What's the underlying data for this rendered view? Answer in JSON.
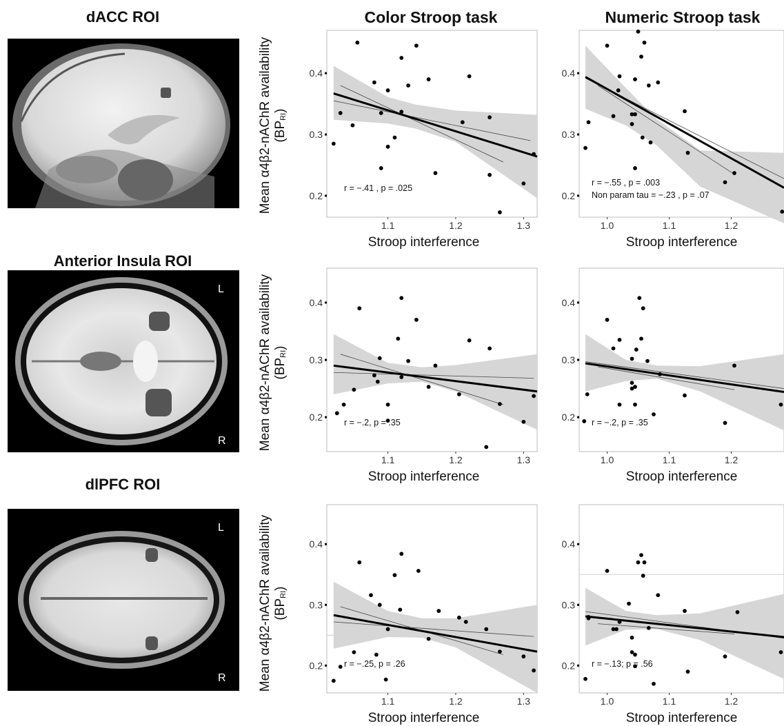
{
  "roi_titles": {
    "dacc": "dACC ROI",
    "insula": "Anterior Insula ROI",
    "dlpfc": "dlPFC ROI"
  },
  "column_titles": {
    "color": "Color Stroop task",
    "numeric": "Numeric Stroop task"
  },
  "brain_labels": {
    "left": "L",
    "right": "R"
  },
  "ylabel": {
    "main": "Mean α4β2-nAChR availability",
    "sub_prefix": "(BP",
    "sub_subscript": "RI",
    "sub_suffix": ")"
  },
  "colors": {
    "ci_band": "#d6d6d6",
    "fit_line": "#000000",
    "roi_blob": "#555555"
  },
  "chart_data": [
    {
      "type": "scatter",
      "panel": "dACC - Color Stroop",
      "xlabel": "Stroop interference",
      "xlim": [
        1.01,
        1.32
      ],
      "ylim": [
        0.165,
        0.47
      ],
      "xticks": [
        "1.1",
        "1.2",
        "1.3"
      ],
      "yticks": [
        "0.2",
        "0.3",
        "0.4"
      ],
      "annotation": [
        "r = −.41 , p = .025"
      ],
      "fit": {
        "y_start": 0.367,
        "y_end": 0.264
      },
      "band": [
        [
          1.02,
          0.412,
          0.324
        ],
        [
          1.1,
          0.361,
          0.318
        ],
        [
          1.14,
          0.349,
          0.31
        ],
        [
          1.2,
          0.339,
          0.288
        ],
        [
          1.32,
          0.332,
          0.196
        ]
      ],
      "extra_lines": [
        {
          "x": [
            1.02,
            1.31
          ],
          "y": [
            0.355,
            0.29
          ]
        },
        {
          "x": [
            1.03,
            1.27
          ],
          "y": [
            0.38,
            0.255
          ]
        }
      ],
      "points": [
        [
          1.02,
          0.285
        ],
        [
          1.03,
          0.335
        ],
        [
          1.048,
          0.315
        ],
        [
          1.055,
          0.45
        ],
        [
          1.08,
          0.385
        ],
        [
          1.09,
          0.245
        ],
        [
          1.09,
          0.335
        ],
        [
          1.1,
          0.28
        ],
        [
          1.1,
          0.372
        ],
        [
          1.11,
          0.295
        ],
        [
          1.12,
          0.337
        ],
        [
          1.12,
          0.425
        ],
        [
          1.13,
          0.38
        ],
        [
          1.142,
          0.445
        ],
        [
          1.16,
          0.39
        ],
        [
          1.17,
          0.237
        ],
        [
          1.21,
          0.32
        ],
        [
          1.22,
          0.395
        ],
        [
          1.25,
          0.328
        ],
        [
          1.25,
          0.234
        ],
        [
          1.265,
          0.173
        ],
        [
          1.3,
          0.22
        ],
        [
          1.315,
          0.268
        ]
      ]
    },
    {
      "type": "scatter",
      "panel": "dACC - Numeric Stroop",
      "xlabel": "Stroop interference",
      "xlim": [
        0.955,
        1.285
      ],
      "ylim": [
        0.165,
        0.47
      ],
      "xticks": [
        "1.0",
        "1.1",
        "1.2"
      ],
      "yticks": [
        "0.2",
        "0.3",
        "0.4"
      ],
      "annotation": [
        "r = −.55 , p = .003",
        "Non param tau = −.23 , p = .07"
      ],
      "fit": {
        "y_start": 0.394,
        "y_end": 0.213
      },
      "band": [
        [
          0.965,
          0.445,
          0.342
        ],
        [
          1.03,
          0.376,
          0.315
        ],
        [
          1.08,
          0.325,
          0.282
        ],
        [
          1.15,
          0.274,
          0.215
        ],
        [
          1.285,
          0.27,
          0.155
        ]
      ],
      "extra_lines": [
        {
          "x": [
            0.965,
            1.285
          ],
          "y": [
            0.392,
            0.228
          ]
        },
        {
          "x": [
            0.985,
            1.205
          ],
          "y": [
            0.38,
            0.235
          ]
        }
      ],
      "points": [
        [
          0.965,
          0.278
        ],
        [
          0.97,
          0.32
        ],
        [
          1.0,
          0.445
        ],
        [
          1.01,
          0.33
        ],
        [
          1.018,
          0.372
        ],
        [
          1.02,
          0.395
        ],
        [
          1.04,
          0.333
        ],
        [
          1.04,
          0.317
        ],
        [
          1.045,
          0.333
        ],
        [
          1.045,
          0.245
        ],
        [
          1.045,
          0.39
        ],
        [
          1.05,
          0.468
        ],
        [
          1.055,
          0.427
        ],
        [
          1.057,
          0.295
        ],
        [
          1.06,
          0.45
        ],
        [
          1.067,
          0.38
        ],
        [
          1.07,
          0.287
        ],
        [
          1.082,
          0.385
        ],
        [
          1.125,
          0.338
        ],
        [
          1.13,
          0.27
        ],
        [
          1.19,
          0.222
        ],
        [
          1.205,
          0.237
        ],
        [
          1.282,
          0.174
        ]
      ]
    },
    {
      "type": "scatter",
      "panel": "Anterior Insula - Color Stroop",
      "xlabel": "Stroop interference",
      "xlim": [
        1.01,
        1.32
      ],
      "ylim": [
        0.14,
        0.46
      ],
      "xticks": [
        "1.1",
        "1.2",
        "1.3"
      ],
      "yticks": [
        "0.2",
        "0.3",
        "0.4"
      ],
      "annotation": [
        "r = −.2, p = .35"
      ],
      "fit": {
        "y_start": 0.29,
        "y_end": 0.245
      },
      "band": [
        [
          1.02,
          0.345,
          0.24
        ],
        [
          1.1,
          0.295,
          0.259
        ],
        [
          1.15,
          0.287,
          0.262
        ],
        [
          1.2,
          0.291,
          0.245
        ],
        [
          1.32,
          0.31,
          0.178
        ]
      ],
      "extra_lines": [
        {
          "x": [
            1.02,
            1.315
          ],
          "y": [
            0.278,
            0.268
          ]
        },
        {
          "x": [
            1.03,
            1.27
          ],
          "y": [
            0.31,
            0.222
          ]
        }
      ],
      "points": [
        [
          1.025,
          0.207
        ],
        [
          1.035,
          0.222
        ],
        [
          1.05,
          0.248
        ],
        [
          1.058,
          0.39
        ],
        [
          1.08,
          0.273
        ],
        [
          1.085,
          0.262
        ],
        [
          1.088,
          0.303
        ],
        [
          1.1,
          0.194
        ],
        [
          1.1,
          0.222
        ],
        [
          1.115,
          0.337
        ],
        [
          1.12,
          0.27
        ],
        [
          1.12,
          0.408
        ],
        [
          1.13,
          0.298
        ],
        [
          1.142,
          0.37
        ],
        [
          1.16,
          0.253
        ],
        [
          1.17,
          0.29
        ],
        [
          1.205,
          0.24
        ],
        [
          1.22,
          0.334
        ],
        [
          1.245,
          0.148
        ],
        [
          1.25,
          0.32
        ],
        [
          1.265,
          0.223
        ],
        [
          1.3,
          0.192
        ],
        [
          1.315,
          0.237
        ]
      ]
    },
    {
      "type": "scatter",
      "panel": "Anterior Insula - Numeric Stroop",
      "xlabel": "Stroop interference",
      "xlim": [
        0.955,
        1.285
      ],
      "ylim": [
        0.14,
        0.46
      ],
      "xticks": [
        "1.0",
        "1.1",
        "1.2"
      ],
      "yticks": [
        "0.2",
        "0.3",
        "0.4"
      ],
      "annotation": [
        "r = −.2, p = .35"
      ],
      "fit": {
        "y_start": 0.294,
        "y_end": 0.244
      },
      "band": [
        [
          0.965,
          0.345,
          0.245
        ],
        [
          1.03,
          0.3,
          0.263
        ],
        [
          1.08,
          0.29,
          0.267
        ],
        [
          1.15,
          0.289,
          0.245
        ],
        [
          1.285,
          0.31,
          0.177
        ]
      ],
      "extra_lines": [
        {
          "x": [
            0.965,
            1.285
          ],
          "y": [
            0.297,
            0.25
          ]
        },
        {
          "x": [
            0.985,
            1.205
          ],
          "y": [
            0.288,
            0.248
          ]
        }
      ],
      "points": [
        [
          0.963,
          0.193
        ],
        [
          0.968,
          0.24
        ],
        [
          1.0,
          0.37
        ],
        [
          1.01,
          0.32
        ],
        [
          1.02,
          0.335
        ],
        [
          1.02,
          0.222
        ],
        [
          1.04,
          0.302
        ],
        [
          1.04,
          0.26
        ],
        [
          1.04,
          0.25
        ],
        [
          1.045,
          0.253
        ],
        [
          1.045,
          0.222
        ],
        [
          1.047,
          0.318
        ],
        [
          1.052,
          0.408
        ],
        [
          1.055,
          0.337
        ],
        [
          1.058,
          0.39
        ],
        [
          1.065,
          0.298
        ],
        [
          1.075,
          0.205
        ],
        [
          1.085,
          0.275
        ],
        [
          1.125,
          0.238
        ],
        [
          1.19,
          0.19
        ],
        [
          1.205,
          0.29
        ],
        [
          1.28,
          0.222
        ]
      ]
    },
    {
      "type": "scatter",
      "panel": "dlPFC - Color Stroop",
      "xlabel": "Stroop interference",
      "xlim": [
        1.01,
        1.32
      ],
      "ylim": [
        0.155,
        0.465
      ],
      "xticks": [
        "1.1",
        "1.2",
        "1.3"
      ],
      "yticks": [
        "0.2",
        "0.3",
        "0.4"
      ],
      "annotation": [
        "r = −.25, p = .26"
      ],
      "hline": 0.25,
      "fit": {
        "y_start": 0.283,
        "y_end": 0.223
      },
      "band": [
        [
          1.02,
          0.338,
          0.228
        ],
        [
          1.1,
          0.29,
          0.247
        ],
        [
          1.15,
          0.278,
          0.246
        ],
        [
          1.2,
          0.278,
          0.23
        ],
        [
          1.32,
          0.3,
          0.155
        ]
      ],
      "extra_lines": [
        {
          "x": [
            1.02,
            1.315
          ],
          "y": [
            0.272,
            0.248
          ]
        },
        {
          "x": [
            1.03,
            1.27
          ],
          "y": [
            0.297,
            0.218
          ]
        }
      ],
      "points": [
        [
          1.02,
          0.175
        ],
        [
          1.03,
          0.198
        ],
        [
          1.05,
          0.222
        ],
        [
          1.058,
          0.37
        ],
        [
          1.075,
          0.316
        ],
        [
          1.083,
          0.218
        ],
        [
          1.088,
          0.3
        ],
        [
          1.097,
          0.177
        ],
        [
          1.1,
          0.26
        ],
        [
          1.11,
          0.349
        ],
        [
          1.118,
          0.292
        ],
        [
          1.12,
          0.384
        ],
        [
          1.145,
          0.356
        ],
        [
          1.16,
          0.244
        ],
        [
          1.175,
          0.29
        ],
        [
          1.205,
          0.279
        ],
        [
          1.215,
          0.272
        ],
        [
          1.245,
          0.26
        ],
        [
          1.265,
          0.223
        ],
        [
          1.3,
          0.215
        ],
        [
          1.315,
          0.192
        ]
      ]
    },
    {
      "type": "scatter",
      "panel": "dlPFC - Numeric Stroop",
      "xlabel": "Stroop interference",
      "xlim": [
        0.955,
        1.285
      ],
      "ylim": [
        0.155,
        0.465
      ],
      "xticks": [
        "1.0",
        "1.1",
        "1.2"
      ],
      "yticks": [
        "0.2",
        "0.3",
        "0.4"
      ],
      "annotation": [
        "r = −.13; p = .56"
      ],
      "hline": 0.35,
      "fit": {
        "y_start": 0.281,
        "y_end": 0.247
      },
      "band": [
        [
          0.965,
          0.328,
          0.233
        ],
        [
          1.03,
          0.29,
          0.259
        ],
        [
          1.08,
          0.283,
          0.26
        ],
        [
          1.15,
          0.286,
          0.242
        ],
        [
          1.285,
          0.318,
          0.178
        ]
      ],
      "extra_lines": [
        {
          "x": [
            0.965,
            1.285
          ],
          "y": [
            0.289,
            0.245
          ]
        },
        {
          "x": [
            0.985,
            1.205
          ],
          "y": [
            0.269,
            0.252
          ]
        }
      ],
      "points": [
        [
          0.965,
          0.178
        ],
        [
          0.97,
          0.278
        ],
        [
          0.97,
          0.28
        ],
        [
          1.0,
          0.356
        ],
        [
          1.01,
          0.26
        ],
        [
          1.015,
          0.26
        ],
        [
          1.02,
          0.272
        ],
        [
          1.035,
          0.302
        ],
        [
          1.04,
          0.222
        ],
        [
          1.04,
          0.246
        ],
        [
          1.045,
          0.218
        ],
        [
          1.045,
          0.199
        ],
        [
          1.05,
          0.37
        ],
        [
          1.055,
          0.382
        ],
        [
          1.058,
          0.348
        ],
        [
          1.06,
          0.37
        ],
        [
          1.067,
          0.262
        ],
        [
          1.075,
          0.17
        ],
        [
          1.082,
          0.316
        ],
        [
          1.125,
          0.29
        ],
        [
          1.13,
          0.19
        ],
        [
          1.19,
          0.215
        ],
        [
          1.21,
          0.288
        ],
        [
          1.28,
          0.222
        ]
      ]
    }
  ]
}
